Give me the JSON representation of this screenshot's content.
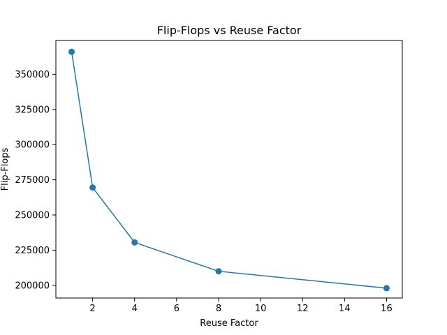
{
  "chart_data": {
    "type": "line",
    "title": "Flip-Flops vs Reuse Factor",
    "xlabel": "Reuse Factor",
    "ylabel": "Flip-Flops",
    "x": [
      1,
      2,
      4,
      8,
      16
    ],
    "series": [
      {
        "values": [
          366000,
          269500,
          230500,
          210000,
          198000
        ]
      }
    ],
    "xlim": [
      0.25,
      16.75
    ],
    "ylim": [
      191000,
      374000
    ],
    "xticks": [
      2,
      4,
      6,
      8,
      10,
      12,
      14,
      16
    ],
    "yticks": [
      200000,
      225000,
      250000,
      275000,
      300000,
      325000,
      350000
    ],
    "xtick_labels": [
      "2",
      "4",
      "6",
      "8",
      "10",
      "12",
      "14",
      "16"
    ],
    "ytick_labels": [
      "200000",
      "225000",
      "250000",
      "275000",
      "300000",
      "325000",
      "350000"
    ],
    "grid": false,
    "colors": {
      "series": "#1f77b4",
      "axes": "#000000"
    }
  }
}
